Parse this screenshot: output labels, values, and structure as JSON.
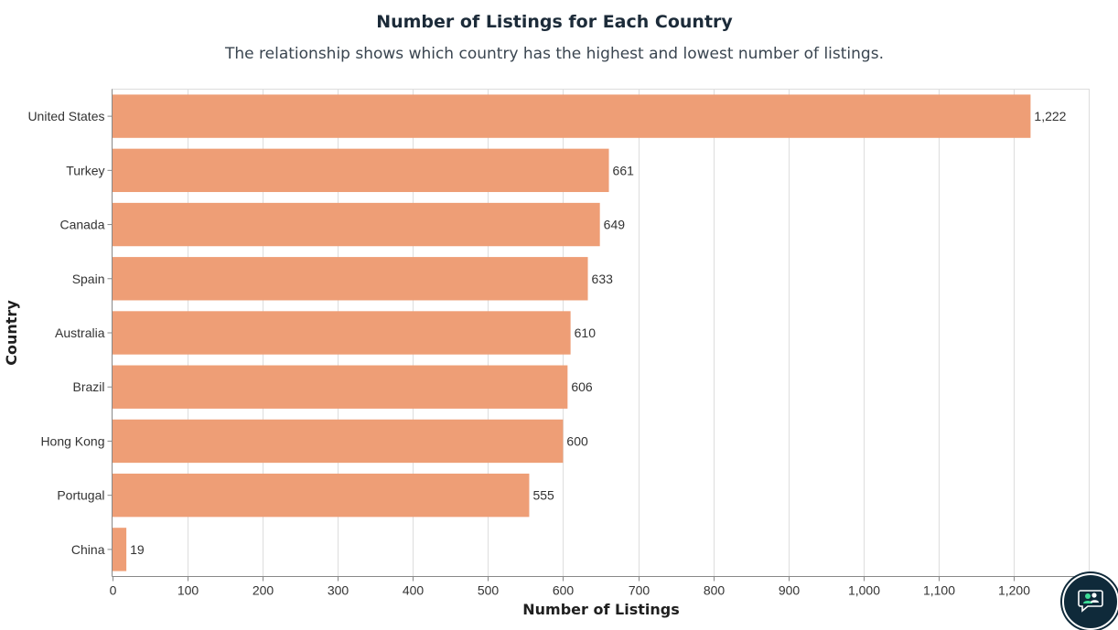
{
  "header": {
    "title": "Number of Listings for Each Country",
    "subtitle": "The relationship shows which country has the highest and lowest number of listings."
  },
  "chart_data": {
    "type": "bar",
    "orientation": "horizontal",
    "categories": [
      "United States",
      "Turkey",
      "Canada",
      "Spain",
      "Australia",
      "Brazil",
      "Hong Kong",
      "Portugal",
      "China"
    ],
    "values": [
      1222,
      661,
      649,
      633,
      610,
      606,
      600,
      555,
      19
    ],
    "value_labels": [
      "1,222",
      "661",
      "649",
      "633",
      "610",
      "606",
      "600",
      "555",
      "19"
    ],
    "title": "Number of Listings for Each Country",
    "subtitle": "The relationship shows which country has the highest and lowest number of listings.",
    "xlabel": "Number of Listings",
    "ylabel": "Country",
    "xlim": [
      0,
      1300
    ],
    "xticks": [
      0,
      100,
      200,
      300,
      400,
      500,
      600,
      700,
      800,
      900,
      1000,
      1100,
      1200
    ],
    "xtick_labels": [
      "0",
      "100",
      "200",
      "300",
      "400",
      "500",
      "600",
      "700",
      "800",
      "900",
      "1,000",
      "1,100",
      "1,200"
    ],
    "grid": true,
    "legend": "none",
    "bar_color": "#ee9e76"
  },
  "chat_widget": {
    "icon": "chat-people-icon",
    "background": "#0f2a3a",
    "accent": "#3ddc97"
  }
}
